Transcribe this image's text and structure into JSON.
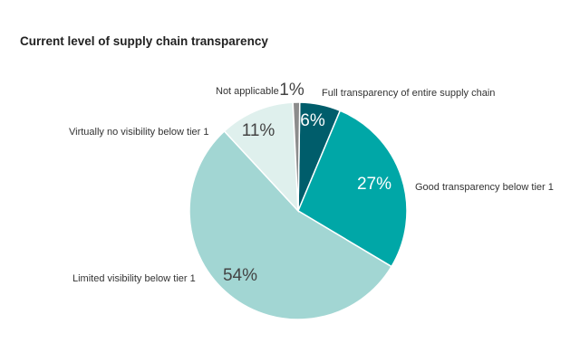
{
  "chart_data": {
    "type": "pie",
    "title": "Current level of supply chain transparency",
    "slices": [
      {
        "label": "Full transparency of entire supply chain",
        "value": 6,
        "display": "6%",
        "color": "#005d6b",
        "pct_color": "#ffffff",
        "data_name": "slice-full-transparency"
      },
      {
        "label": "Good transparency below tier 1",
        "value": 27,
        "display": "27%",
        "color": "#00a7a7",
        "pct_color": "#ffffff",
        "data_name": "slice-good-transparency"
      },
      {
        "label": "Limited visibility below tier 1",
        "value": 54,
        "display": "54%",
        "color": "#a2d6d3",
        "pct_color": "#444444",
        "data_name": "slice-limited-visibility"
      },
      {
        "label": "Virtually no visibility below tier 1",
        "value": 11,
        "display": "11%",
        "color": "#dff0ed",
        "pct_color": "#444444",
        "data_name": "slice-no-visibility"
      },
      {
        "label": "Not applicable",
        "value": 1,
        "display": "1%",
        "color": "#8c8c8c",
        "pct_color": "#444444",
        "data_name": "slice-not-applicable"
      }
    ]
  }
}
